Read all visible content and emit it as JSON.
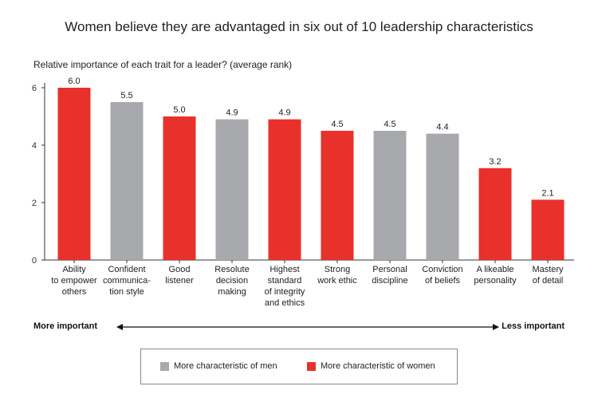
{
  "title": "Women believe they are advantaged in six out of 10 leadership characteristics",
  "subtitle": "Relative importance of each trait for a leader? (average rank)",
  "colors": {
    "women": "#e8312b",
    "men": "#a7a9ac",
    "axis": "#333333"
  },
  "chart_data": {
    "type": "bar",
    "categories": [
      "Ability to empower others",
      "Confident communica-tion style",
      "Good listener",
      "Resolute decision making",
      "Highest standard of integrity and ethics",
      "Strong work ethic",
      "Personal discipline",
      "Conviction of beliefs",
      "A likeable personality",
      "Mastery of detail"
    ],
    "category_lines": [
      [
        "Ability",
        "to empower",
        "others"
      ],
      [
        "Confident",
        "communica-",
        "tion style"
      ],
      [
        "Good",
        "listener"
      ],
      [
        "Resolute",
        "decision",
        "making"
      ],
      [
        "Highest",
        "standard",
        "of integrity",
        "and ethics"
      ],
      [
        "Strong",
        "work ethic"
      ],
      [
        "Personal",
        "discipline"
      ],
      [
        "Conviction",
        "of beliefs"
      ],
      [
        "A likeable",
        "personality"
      ],
      [
        "Mastery",
        "of detail"
      ]
    ],
    "values": [
      6.0,
      5.5,
      5.0,
      4.9,
      4.9,
      4.5,
      4.5,
      4.4,
      3.2,
      2.1
    ],
    "value_labels": [
      "6.0",
      "5.5",
      "5.0",
      "4.9",
      "4.9",
      "4.5",
      "4.5",
      "4.4",
      "3.2",
      "2.1"
    ],
    "group": [
      "women",
      "men",
      "women",
      "men",
      "women",
      "women",
      "men",
      "men",
      "women",
      "women"
    ],
    "ylabel": "Relative importance of each trait for a leader? (average rank)",
    "ylim": [
      0,
      6
    ],
    "yticks": [
      0,
      2,
      4,
      6
    ],
    "legend": [
      {
        "key": "men",
        "label": "More characteristic of men"
      },
      {
        "key": "women",
        "label": "More characteristic of women"
      }
    ],
    "legend_position": "bottom-center",
    "annotations": {
      "left": "More important",
      "right": "Less important"
    }
  }
}
